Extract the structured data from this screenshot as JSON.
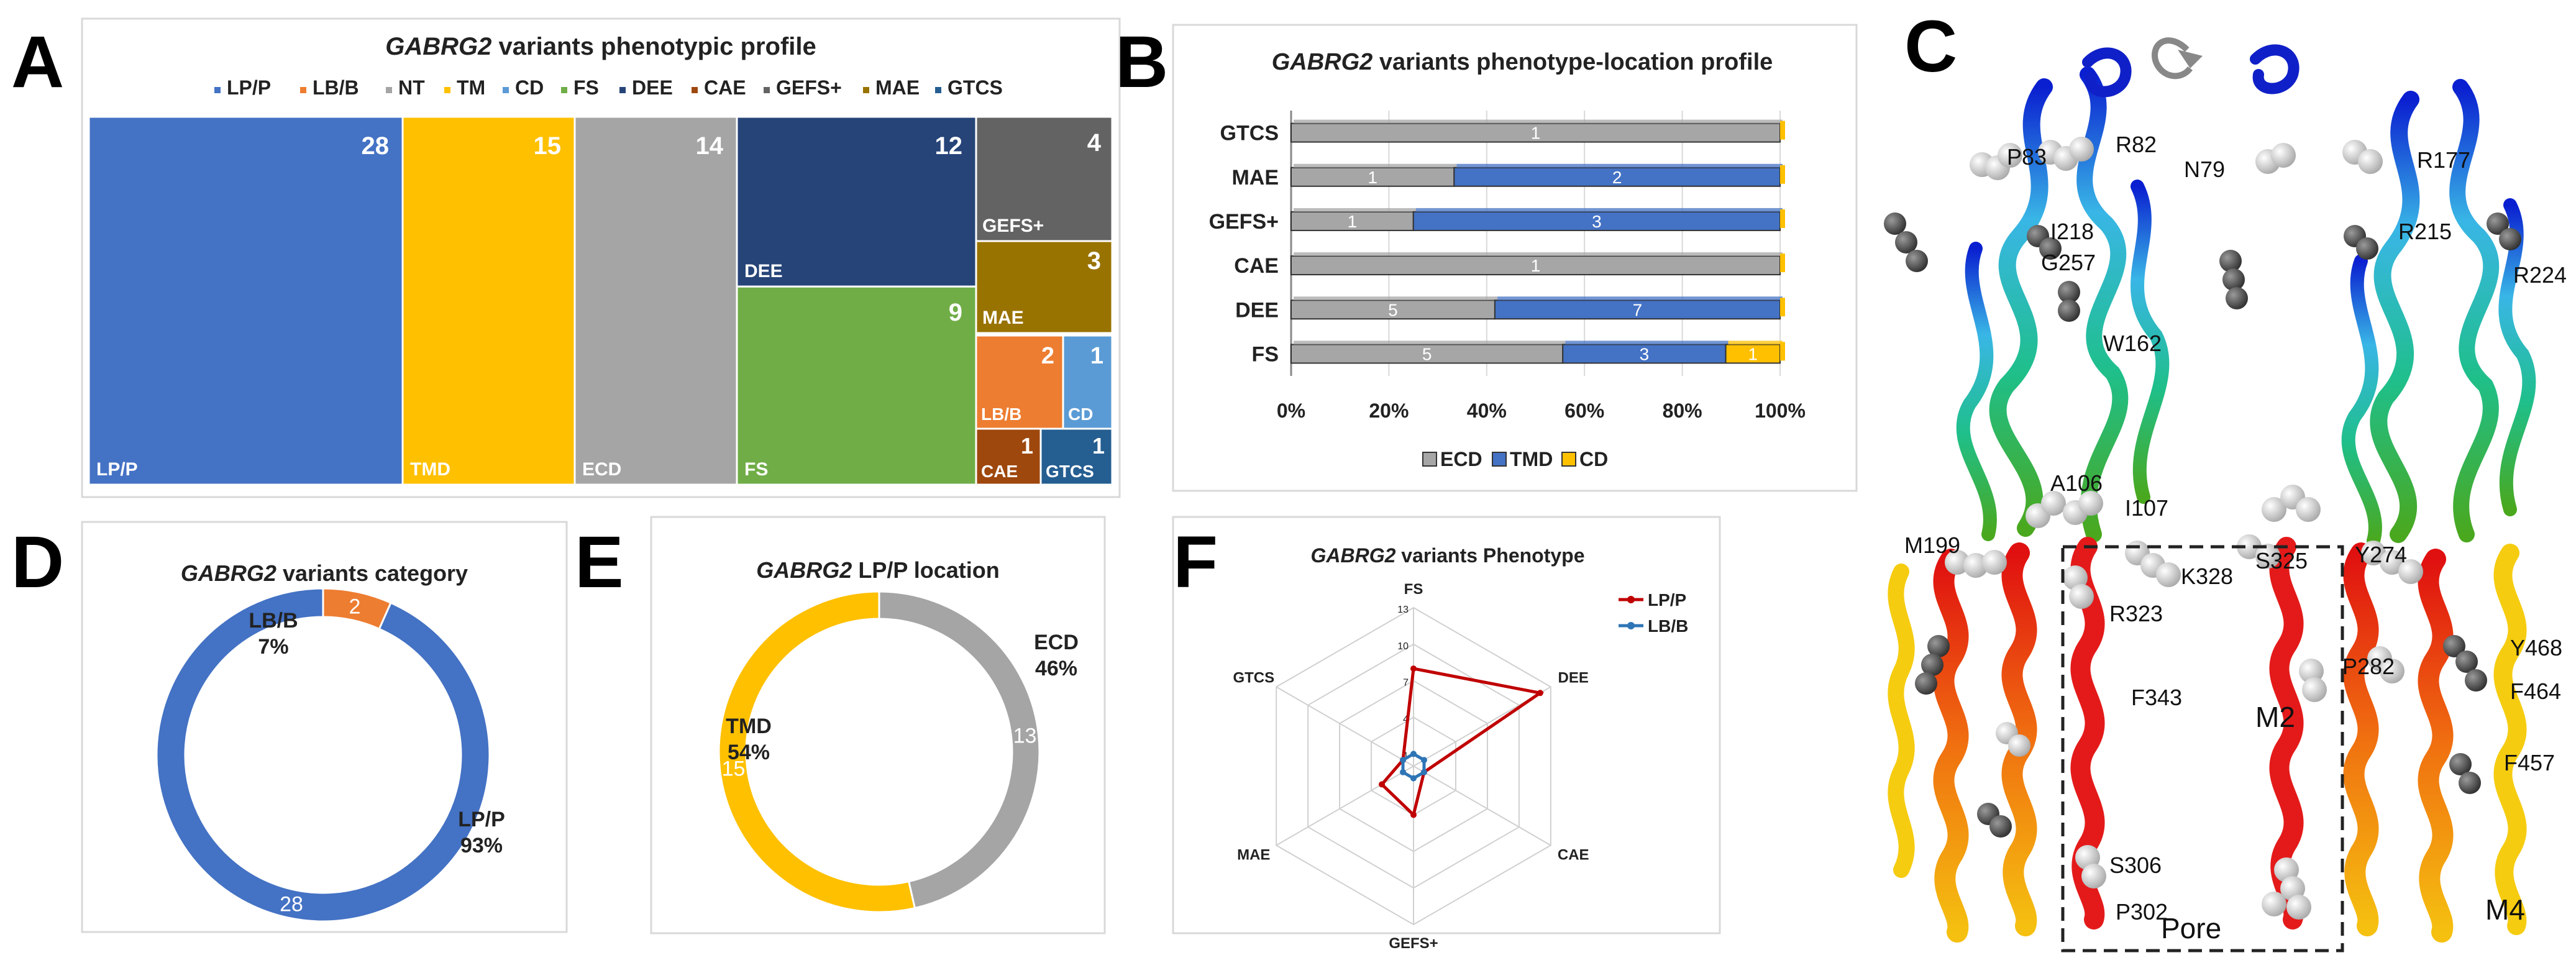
{
  "panel_letters": {
    "A": "A",
    "B": "B",
    "C": "C",
    "D": "D",
    "E": "E",
    "F": "F"
  },
  "chart_data": [
    {
      "panel": "A",
      "type": "treemap",
      "title_gene": "GABRG2",
      "title_rest": " variants phenotypic profile",
      "legend": [
        {
          "name": "LP/P",
          "color": "#4472C4"
        },
        {
          "name": "LB/B",
          "color": "#ED7D31"
        },
        {
          "name": "NT",
          "color": "#A5A5A5"
        },
        {
          "name": "TM",
          "color": "#FFC000"
        },
        {
          "name": "CD",
          "color": "#5B9BD5"
        },
        {
          "name": "FS",
          "color": "#70AD47"
        },
        {
          "name": "DEE",
          "color": "#264478"
        },
        {
          "name": "CAE",
          "color": "#9E480E"
        },
        {
          "name": "GEFS+",
          "color": "#636363"
        },
        {
          "name": "MAE",
          "color": "#997300"
        },
        {
          "name": "GTCS",
          "color": "#255E91"
        }
      ],
      "tiles": [
        {
          "label": "LP/P",
          "value": 28,
          "color": "#4472C4"
        },
        {
          "label": "TMD",
          "value": 15,
          "color": "#FFC000"
        },
        {
          "label": "ECD",
          "value": 14,
          "color": "#A5A5A5"
        },
        {
          "label": "DEE",
          "value": 12,
          "color": "#264478"
        },
        {
          "label": "GEFS+",
          "value": 4,
          "color": "#636363"
        },
        {
          "label": "MAE",
          "value": 3,
          "color": "#997300"
        },
        {
          "label": "FS",
          "value": 9,
          "color": "#70AD47"
        },
        {
          "label": "LB/B",
          "value": 2,
          "color": "#ED7D31"
        },
        {
          "label": "CD",
          "value": 1,
          "color": "#5B9BD5"
        },
        {
          "label": "CAE",
          "value": 1,
          "color": "#9E480E"
        },
        {
          "label": "GTCS",
          "value": 1,
          "color": "#255E91"
        }
      ]
    },
    {
      "panel": "B",
      "type": "bar",
      "orientation": "horizontal",
      "stacked": "percent",
      "title_gene": "GABRG2",
      "title_rest": " variants phenotype-location profile",
      "categories": [
        "GTCS",
        "MAE",
        "GEFS+",
        "CAE",
        "DEE",
        "FS"
      ],
      "series": [
        {
          "name": "ECD",
          "color": "#A6A6A6",
          "values": [
            1,
            1,
            1,
            1,
            5,
            5
          ]
        },
        {
          "name": "TMD",
          "color": "#4472C4",
          "values": [
            0,
            2,
            3,
            0,
            7,
            3
          ]
        },
        {
          "name": "CD",
          "color": "#FFC000",
          "values": [
            0,
            0,
            0,
            0,
            0,
            1
          ]
        }
      ],
      "x_ticks": [
        "0%",
        "20%",
        "40%",
        "60%",
        "80%",
        "100%"
      ]
    },
    {
      "panel": "D",
      "type": "pie",
      "donut": true,
      "title_gene": "GABRG2",
      "title_rest": " variants category",
      "slices": [
        {
          "name": "LP/P",
          "value": 28,
          "percent": "93%",
          "color": "#4472C4"
        },
        {
          "name": "LB/B",
          "value": 2,
          "percent": "7%",
          "color": "#ED7D31"
        }
      ]
    },
    {
      "panel": "E",
      "type": "pie",
      "donut": true,
      "title_gene": "GABRG2",
      "title_rest": " LP/P location",
      "slices": [
        {
          "name": "ECD",
          "value": 13,
          "percent": "46%",
          "color": "#A5A5A5"
        },
        {
          "name": "TMD",
          "value": 15,
          "percent": "54%",
          "color": "#FFC000"
        }
      ]
    },
    {
      "panel": "F",
      "type": "radar",
      "title_gene": "GABRG2",
      "title_rest": " variants Phenotype",
      "axes": [
        "FS",
        "DEE",
        "CAE",
        "GEFS+",
        "MAE",
        "GTCS"
      ],
      "scale_ticks": [
        1,
        4,
        7,
        10,
        13
      ],
      "max": 13,
      "series": [
        {
          "name": "LP/P",
          "color": "#C00000",
          "values": [
            8,
            12,
            1,
            4,
            3,
            1
          ]
        },
        {
          "name": "LB/B",
          "color": "#2E75B6",
          "values": [
            1,
            1,
            1,
            1,
            1,
            1
          ]
        }
      ]
    }
  ],
  "structure": {
    "labels": [
      "R82",
      "P83",
      "N79",
      "R177",
      "I218",
      "G257",
      "R215",
      "R224",
      "W162",
      "A106",
      "I107",
      "M199",
      "S325",
      "Y274",
      "K328",
      "R323",
      "P282",
      "Y468",
      "F464",
      "F343",
      "M2",
      "F457",
      "S306",
      "P302",
      "M4",
      "Pore"
    ]
  }
}
